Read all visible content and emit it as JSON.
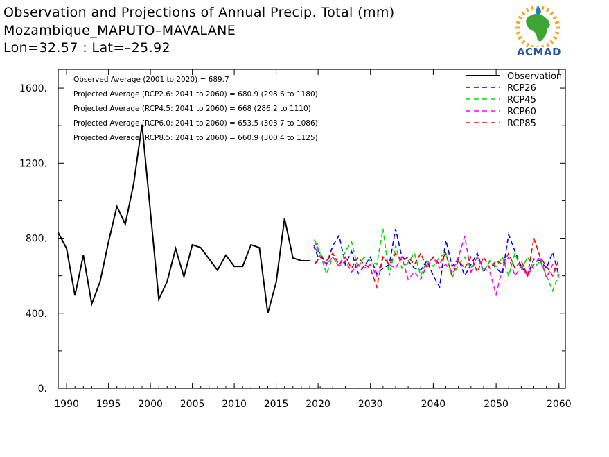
{
  "header": {
    "title_line1": "Observation and Projections of Annual Precip. Total (mm)",
    "title_line2": "Mozambique_MAPUTO–MAVALANE",
    "title_line3": "Lon=32.57 : Lat=–25.92"
  },
  "logo": {
    "text": "ACMAD",
    "colors": {
      "africa": "#3fa535",
      "sun": "#f5a623",
      "drop": "#1f7ac7",
      "text": "#1f55a6"
    }
  },
  "annotations": [
    "Observed Average (2001 to 2020) = 689.7",
    "Projected Average (RCP2.6: 2041 to 2060) = 680.9 (298.6 to 1180)",
    "Projected Average (RCP4.5: 2041 to 2060) = 668 (286.2 to 1110)",
    "Projected Average (RCP6.0: 2041 to 2060) = 653.5 (303.7 to 1086)",
    "Projected Average (RCP8.5: 2041 to 2060) = 660.9 (300.4 to 1125)"
  ],
  "chart_data": {
    "type": "line",
    "xlim": [
      1989,
      2060
    ],
    "ylim": [
      0,
      1700
    ],
    "y_ticks": [
      0,
      400,
      800,
      1200,
      1600
    ],
    "y_tick_labels": [
      "0.",
      "400.",
      "800.",
      "1200.",
      "1600."
    ],
    "x_ticks": [
      1990,
      1995,
      2000,
      2005,
      2010,
      2015,
      2020,
      2030,
      2040,
      2050,
      2060
    ],
    "x_tick_labels": [
      "1990",
      "1995",
      "2000",
      "2005",
      "2010",
      "2015",
      "2020",
      "2030",
      "2040",
      "2050",
      "2060"
    ],
    "grid": false,
    "legend_position": "top-right",
    "series": [
      {
        "name": "Observation",
        "color": "#000000",
        "dash": "solid",
        "x": [
          1989,
          1990,
          1991,
          1992,
          1993,
          1994,
          1995,
          1996,
          1997,
          1998,
          1999,
          2000,
          2001,
          2002,
          2003,
          2004,
          2005,
          2006,
          2007,
          2008,
          2009,
          2010,
          2011,
          2012,
          2013,
          2014,
          2015,
          2016,
          2017,
          2018,
          2019
        ],
        "values": [
          830,
          745,
          495,
          710,
          450,
          570,
          780,
          970,
          875,
          1090,
          1405,
          940,
          475,
          570,
          745,
          595,
          765,
          750,
          690,
          630,
          710,
          650,
          650,
          765,
          750,
          400,
          565,
          905,
          695,
          680,
          680
        ]
      },
      {
        "name": "RCP26",
        "color": "#0000ff",
        "dash": "dashed",
        "x": [
          2020,
          2021,
          2022,
          2023,
          2024,
          2025,
          2026,
          2027,
          2028,
          2029,
          2030,
          2031,
          2032,
          2033,
          2034,
          2035,
          2036,
          2037,
          2038,
          2039,
          2040,
          2041,
          2042,
          2043,
          2044,
          2045,
          2046,
          2047,
          2048,
          2049,
          2050,
          2051,
          2052,
          2053,
          2054,
          2055,
          2056,
          2057,
          2058,
          2059,
          2060
        ],
        "values": [
          700,
          755,
          720,
          660,
          760,
          815,
          660,
          730,
          610,
          650,
          700,
          610,
          640,
          660,
          850,
          700,
          680,
          640,
          630,
          680,
          600,
          540,
          790,
          650,
          690,
          600,
          660,
          720,
          620,
          680,
          640,
          610,
          820,
          730,
          650,
          600,
          690,
          680,
          640,
          725,
          600
        ]
      },
      {
        "name": "RCP45",
        "color": "#00dd00",
        "dash": "dashed",
        "x": [
          2020,
          2021,
          2022,
          2023,
          2024,
          2025,
          2026,
          2027,
          2028,
          2029,
          2030,
          2031,
          2032,
          2033,
          2034,
          2035,
          2036,
          2037,
          2038,
          2039,
          2040,
          2041,
          2042,
          2043,
          2044,
          2045,
          2046,
          2047,
          2048,
          2049,
          2050,
          2051,
          2052,
          2053,
          2054,
          2055,
          2056,
          2057,
          2058,
          2059,
          2060
        ],
        "values": [
          730,
          800,
          720,
          610,
          700,
          650,
          730,
          780,
          640,
          700,
          680,
          660,
          850,
          600,
          760,
          640,
          670,
          720,
          600,
          680,
          650,
          700,
          720,
          590,
          660,
          700,
          640,
          700,
          620,
          680,
          650,
          700,
          600,
          720,
          630,
          700,
          640,
          680,
          600,
          520,
          610
        ]
      },
      {
        "name": "RCP60",
        "color": "#ff00ff",
        "dash": "dashed",
        "x": [
          2020,
          2021,
          2022,
          2023,
          2024,
          2025,
          2026,
          2027,
          2028,
          2029,
          2030,
          2031,
          2032,
          2033,
          2034,
          2035,
          2036,
          2037,
          2038,
          2039,
          2040,
          2041,
          2042,
          2043,
          2044,
          2045,
          2046,
          2047,
          2048,
          2049,
          2050,
          2051,
          2052,
          2053,
          2054,
          2055,
          2056,
          2057,
          2058,
          2059,
          2060
        ],
        "values": [
          770,
          760,
          700,
          660,
          700,
          650,
          680,
          620,
          660,
          640,
          660,
          600,
          700,
          660,
          640,
          700,
          580,
          620,
          580,
          660,
          700,
          640,
          660,
          620,
          700,
          810,
          620,
          700,
          640,
          620,
          500,
          640,
          700,
          600,
          650,
          600,
          660,
          700,
          590,
          660,
          590
        ]
      },
      {
        "name": "RCP85",
        "color": "#ff0000",
        "dash": "dashed",
        "x": [
          2020,
          2021,
          2022,
          2023,
          2024,
          2025,
          2026,
          2027,
          2028,
          2029,
          2030,
          2031,
          2032,
          2033,
          2034,
          2035,
          2036,
          2037,
          2038,
          2039,
          2040,
          2041,
          2042,
          2043,
          2044,
          2045,
          2046,
          2047,
          2048,
          2049,
          2050,
          2051,
          2052,
          2053,
          2054,
          2055,
          2056,
          2057,
          2058,
          2059,
          2060
        ],
        "values": [
          680,
          660,
          700,
          680,
          720,
          660,
          700,
          640,
          700,
          660,
          640,
          540,
          700,
          660,
          720,
          680,
          700,
          660,
          720,
          640,
          700,
          660,
          720,
          600,
          680,
          640,
          700,
          620,
          700,
          640,
          680,
          660,
          720,
          640,
          680,
          600,
          800,
          700,
          650,
          600,
          690
        ]
      }
    ]
  }
}
